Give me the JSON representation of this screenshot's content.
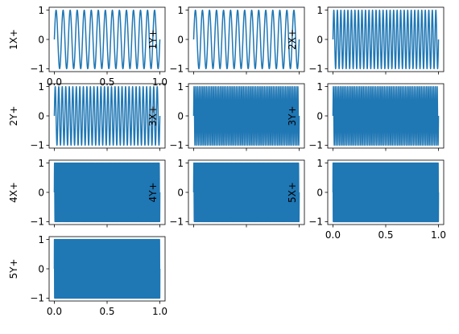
{
  "chart_data": [
    {
      "type": "line",
      "ylabel": "1X+",
      "cycles": 15,
      "xlim": [
        0,
        1
      ],
      "ylim": [
        -1,
        1
      ],
      "xticks": [
        "0.0",
        "0.5",
        "1.0"
      ],
      "yticks": [
        "1",
        "0",
        "−1"
      ]
    },
    {
      "type": "line",
      "ylabel": "1Y+",
      "cycles": 15,
      "xlim": [
        0,
        1
      ],
      "ylim": [
        -1,
        1
      ],
      "xticks": [],
      "yticks": [
        "1",
        "0",
        "−1"
      ]
    },
    {
      "type": "line",
      "ylabel": "2X+",
      "cycles": 30,
      "xlim": [
        0,
        1
      ],
      "ylim": [
        -1,
        1
      ],
      "xticks": [],
      "yticks": [
        "1",
        "0",
        "−1"
      ]
    },
    {
      "type": "line",
      "ylabel": "2Y+",
      "cycles": 30,
      "xlim": [
        0,
        1
      ],
      "ylim": [
        -1,
        1
      ],
      "xticks": [],
      "yticks": [
        "1",
        "0",
        "−1"
      ]
    },
    {
      "type": "line",
      "ylabel": "3X+",
      "cycles": 60,
      "xlim": [
        0,
        1
      ],
      "ylim": [
        -1,
        1
      ],
      "xticks": [],
      "yticks": [
        "1",
        "0",
        "−1"
      ]
    },
    {
      "type": "line",
      "ylabel": "3Y+",
      "cycles": 60,
      "xlim": [
        0,
        1
      ],
      "ylim": [
        -1,
        1
      ],
      "xticks": [],
      "yticks": [
        "1",
        "0",
        "−1"
      ]
    },
    {
      "type": "line",
      "ylabel": "4X+",
      "cycles": 120,
      "xlim": [
        0,
        1
      ],
      "ylim": [
        -1,
        1
      ],
      "xticks": [],
      "yticks": [
        "1",
        "0",
        "−1"
      ]
    },
    {
      "type": "line",
      "ylabel": "4Y+",
      "cycles": 120,
      "xlim": [
        0,
        1
      ],
      "ylim": [
        -1,
        1
      ],
      "xticks": [],
      "yticks": [
        "1",
        "0",
        "−1"
      ]
    },
    {
      "type": "line",
      "ylabel": "5X+",
      "cycles": 240,
      "xlim": [
        0,
        1
      ],
      "ylim": [
        -1,
        1
      ],
      "xticks": [
        "0.0",
        "0.5",
        "1.0"
      ],
      "yticks": [
        "1",
        "0",
        "−1"
      ]
    },
    {
      "type": "line",
      "ylabel": "5Y+",
      "cycles": 240,
      "xlim": [
        0,
        1
      ],
      "ylim": [
        -1,
        1
      ],
      "xticks": [
        "0.0",
        "0.5",
        "1.0"
      ],
      "yticks": [
        "1",
        "0",
        "−1"
      ]
    }
  ],
  "colors": {
    "line": "#1f77b4"
  }
}
